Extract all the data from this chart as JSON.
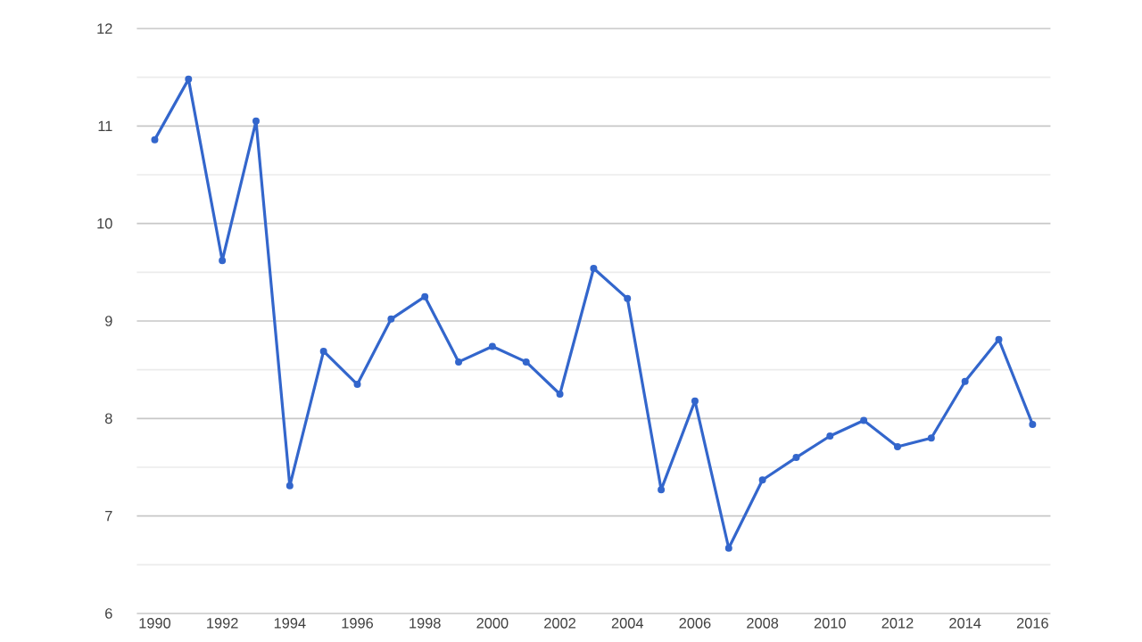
{
  "chart_data": {
    "type": "line",
    "x": [
      1990,
      1991,
      1992,
      1993,
      1994,
      1995,
      1996,
      1997,
      1998,
      1999,
      2000,
      2001,
      2002,
      2003,
      2004,
      2005,
      2006,
      2007,
      2008,
      2009,
      2010,
      2011,
      2012,
      2013,
      2014,
      2015,
      2016
    ],
    "series": [
      {
        "color": "#3366cc",
        "values": [
          10.86,
          11.48,
          9.62,
          11.05,
          7.31,
          8.69,
          8.35,
          9.02,
          9.25,
          8.58,
          8.74,
          8.58,
          8.25,
          9.54,
          9.23,
          7.27,
          8.18,
          6.67,
          7.37,
          7.6,
          7.82,
          7.98,
          7.71,
          7.8,
          8.38,
          8.81,
          7.94
        ]
      }
    ],
    "xlim": [
      1989.47,
      2016.53
    ],
    "xticks": [
      1990,
      1992,
      1994,
      1996,
      1998,
      2000,
      2002,
      2004,
      2006,
      2008,
      2010,
      2012,
      2014,
      2016
    ],
    "ylim": [
      6,
      12
    ],
    "yticks": [
      6,
      {
        "value": 6.5,
        "label": null
      },
      7,
      {
        "value": 7.5,
        "label": null
      },
      8,
      {
        "value": 8.5,
        "label": null
      },
      9,
      {
        "value": 9.5,
        "label": null
      },
      10,
      {
        "value": 10.5,
        "label": null
      },
      11,
      {
        "value": 11.5,
        "label": null
      },
      12
    ],
    "grid": "y",
    "marker": "circle",
    "line_style": "solid",
    "legend": false
  }
}
